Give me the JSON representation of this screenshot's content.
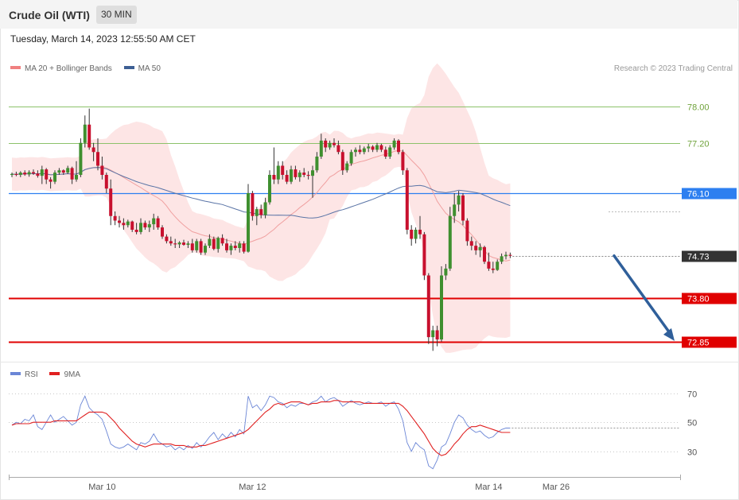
{
  "header": {
    "title": "Crude Oil (WTI)",
    "timeframe": "30 MIN"
  },
  "datetime": "Tuesday, March 14, 2023 12:55:50 AM CET",
  "copyright": "Research © 2023 Trading Central",
  "legend_main": [
    {
      "label": "MA 20 + Bollinger Bands",
      "color": "#f08080"
    },
    {
      "label": "MA 50",
      "color": "#3d5f94"
    }
  ],
  "legend_rsi": [
    {
      "label": "RSI",
      "color": "#6b86d6"
    },
    {
      "label": "9MA",
      "color": "#e02020"
    }
  ],
  "chart_data": [
    {
      "type": "candlestick",
      "title": "Crude Oil (WTI)",
      "ylim": [
        72.5,
        78.5
      ],
      "current_price": "74.73",
      "levels": [
        {
          "value": 78.0,
          "label": "78.00",
          "role": "resistance",
          "color": "#8cc26a"
        },
        {
          "value": 77.2,
          "label": "77.20",
          "role": "resistance",
          "color": "#8cc26a"
        },
        {
          "value": 76.1,
          "label": "76.10",
          "role": "pivot",
          "color": "#2d7ff0"
        },
        {
          "value": 73.8,
          "label": "73.80",
          "role": "support",
          "color": "#e00000"
        },
        {
          "value": 72.85,
          "label": "72.85",
          "role": "support",
          "color": "#e00000"
        }
      ],
      "forecast_arrow": {
        "from": 74.73,
        "to": 72.85,
        "color": "#2f5f9a"
      },
      "candles": [
        [
          76.5,
          76.55,
          76.45,
          76.52
        ],
        [
          76.52,
          76.57,
          76.47,
          76.5
        ],
        [
          76.5,
          76.58,
          76.45,
          76.55
        ],
        [
          76.55,
          76.6,
          76.48,
          76.51
        ],
        [
          76.51,
          76.6,
          76.46,
          76.56
        ],
        [
          76.56,
          76.62,
          76.5,
          76.53
        ],
        [
          76.53,
          76.6,
          76.44,
          76.48
        ],
        [
          76.48,
          76.7,
          76.3,
          76.62
        ],
        [
          76.62,
          76.65,
          76.3,
          76.4
        ],
        [
          76.4,
          76.45,
          76.2,
          76.35
        ],
        [
          76.35,
          76.6,
          76.3,
          76.55
        ],
        [
          76.55,
          76.65,
          76.5,
          76.6
        ],
        [
          76.6,
          76.62,
          76.5,
          76.55
        ],
        [
          76.55,
          76.7,
          76.52,
          76.65
        ],
        [
          76.65,
          76.68,
          76.3,
          76.4
        ],
        [
          76.4,
          76.8,
          76.35,
          76.5
        ],
        [
          76.5,
          77.3,
          76.45,
          77.2
        ],
        [
          77.2,
          77.8,
          77.1,
          77.6
        ],
        [
          77.6,
          77.95,
          77.05,
          77.1
        ],
        [
          77.1,
          77.2,
          76.8,
          77.0
        ],
        [
          77.0,
          77.3,
          76.6,
          76.7
        ],
        [
          76.7,
          76.9,
          76.4,
          76.5
        ],
        [
          76.5,
          76.55,
          76.1,
          76.2
        ],
        [
          76.2,
          76.4,
          75.4,
          75.6
        ],
        [
          75.6,
          75.7,
          75.4,
          75.5
        ],
        [
          75.5,
          75.6,
          75.35,
          75.45
        ],
        [
          75.45,
          75.55,
          75.3,
          75.4
        ],
        [
          75.4,
          75.52,
          75.35,
          75.48
        ],
        [
          75.48,
          75.5,
          75.25,
          75.3
        ],
        [
          75.3,
          75.45,
          75.2,
          75.25
        ],
        [
          75.25,
          75.55,
          75.2,
          75.45
        ],
        [
          75.45,
          75.5,
          75.3,
          75.35
        ],
        [
          75.35,
          75.5,
          75.25,
          75.42
        ],
        [
          75.42,
          75.65,
          75.3,
          75.55
        ],
        [
          75.55,
          75.6,
          75.3,
          75.35
        ],
        [
          75.35,
          75.4,
          75.1,
          75.15
        ],
        [
          75.15,
          75.2,
          75.0,
          75.05
        ],
        [
          75.05,
          75.15,
          74.95,
          75.0
        ],
        [
          75.0,
          75.1,
          74.9,
          74.98
        ],
        [
          74.98,
          75.05,
          74.9,
          75.02
        ],
        [
          75.02,
          75.08,
          74.95,
          74.97
        ],
        [
          74.97,
          75.05,
          74.9,
          75.0
        ],
        [
          75.0,
          75.1,
          74.8,
          74.85
        ],
        [
          74.85,
          75.1,
          74.8,
          75.05
        ],
        [
          75.05,
          75.1,
          74.75,
          74.8
        ],
        [
          74.8,
          75.0,
          74.75,
          74.95
        ],
        [
          74.95,
          75.2,
          74.9,
          75.1
        ],
        [
          75.1,
          75.15,
          74.85,
          74.88
        ],
        [
          74.88,
          75.15,
          74.8,
          75.12
        ],
        [
          75.12,
          75.2,
          74.95,
          75.0
        ],
        [
          75.0,
          75.1,
          74.8,
          74.85
        ],
        [
          74.85,
          75.0,
          74.75,
          74.95
        ],
        [
          74.95,
          75.05,
          74.85,
          74.9
        ],
        [
          74.9,
          75.05,
          74.8,
          75.0
        ],
        [
          75.0,
          75.05,
          74.78,
          74.82
        ],
        [
          74.82,
          76.3,
          74.8,
          76.1
        ],
        [
          76.1,
          76.15,
          75.5,
          75.6
        ],
        [
          75.6,
          75.8,
          75.4,
          75.75
        ],
        [
          75.75,
          75.85,
          75.55,
          75.62
        ],
        [
          75.62,
          76.0,
          75.55,
          75.9
        ],
        [
          75.9,
          76.6,
          75.85,
          76.5
        ],
        [
          76.5,
          77.1,
          76.3,
          76.4
        ],
        [
          76.4,
          76.8,
          76.3,
          76.7
        ],
        [
          76.7,
          76.8,
          76.4,
          76.5
        ],
        [
          76.5,
          76.6,
          76.3,
          76.35
        ],
        [
          76.35,
          76.7,
          76.3,
          76.62
        ],
        [
          76.62,
          76.7,
          76.4,
          76.45
        ],
        [
          76.45,
          76.6,
          76.35,
          76.55
        ],
        [
          76.55,
          76.65,
          76.45,
          76.5
        ],
        [
          76.5,
          76.58,
          76.4,
          76.48
        ],
        [
          76.48,
          76.7,
          76.0,
          76.6
        ],
        [
          76.6,
          77.0,
          76.55,
          76.9
        ],
        [
          76.9,
          77.4,
          76.85,
          77.25
        ],
        [
          77.25,
          77.3,
          77.0,
          77.1
        ],
        [
          77.1,
          77.25,
          77.05,
          77.2
        ],
        [
          77.2,
          77.3,
          77.1,
          77.15
        ],
        [
          77.15,
          77.25,
          76.95,
          77.0
        ],
        [
          77.0,
          77.05,
          76.5,
          76.6
        ],
        [
          76.6,
          76.8,
          76.55,
          76.75
        ],
        [
          76.75,
          77.05,
          76.7,
          77.0
        ],
        [
          77.0,
          77.1,
          76.9,
          77.05
        ],
        [
          77.05,
          77.15,
          76.95,
          77.0
        ],
        [
          77.0,
          77.12,
          76.95,
          77.08
        ],
        [
          77.08,
          77.18,
          77.0,
          77.12
        ],
        [
          77.12,
          77.15,
          77.0,
          77.05
        ],
        [
          77.05,
          77.2,
          77.0,
          77.15
        ],
        [
          77.15,
          77.18,
          77.0,
          77.05
        ],
        [
          77.05,
          77.12,
          76.85,
          76.9
        ],
        [
          76.9,
          77.15,
          76.85,
          77.1
        ],
        [
          77.1,
          77.3,
          77.05,
          77.25
        ],
        [
          77.25,
          77.28,
          76.95,
          77.0
        ],
        [
          77.0,
          77.05,
          76.5,
          76.6
        ],
        [
          76.6,
          76.65,
          75.2,
          75.3
        ],
        [
          75.3,
          75.4,
          74.95,
          75.1
        ],
        [
          75.1,
          75.35,
          75.0,
          75.3
        ],
        [
          75.3,
          75.6,
          75.1,
          75.2
        ],
        [
          75.2,
          75.25,
          74.2,
          74.3
        ],
        [
          74.3,
          74.35,
          72.8,
          72.95
        ],
        [
          72.95,
          73.2,
          72.65,
          73.1
        ],
        [
          73.1,
          73.2,
          72.75,
          72.9
        ],
        [
          72.9,
          74.5,
          72.85,
          74.3
        ],
        [
          74.3,
          74.55,
          74.2,
          74.45
        ],
        [
          74.45,
          75.8,
          74.4,
          75.6
        ],
        [
          75.6,
          76.1,
          75.45,
          75.85
        ],
        [
          75.85,
          76.15,
          75.7,
          76.05
        ],
        [
          76.05,
          76.1,
          75.4,
          75.5
        ],
        [
          75.5,
          75.55,
          74.95,
          75.05
        ],
        [
          75.05,
          75.15,
          74.85,
          74.95
        ],
        [
          74.95,
          75.05,
          74.75,
          74.85
        ],
        [
          74.85,
          75.0,
          74.7,
          74.92
        ],
        [
          74.92,
          74.95,
          74.55,
          74.6
        ],
        [
          74.6,
          74.8,
          74.4,
          74.45
        ],
        [
          74.45,
          74.6,
          74.35,
          74.42
        ],
        [
          74.42,
          74.65,
          74.4,
          74.6
        ],
        [
          74.6,
          74.78,
          74.55,
          74.72
        ],
        [
          74.72,
          74.82,
          74.65,
          74.75
        ],
        [
          74.75,
          74.8,
          74.68,
          74.73
        ]
      ]
    },
    {
      "type": "line",
      "title": "RSI",
      "yticks": [
        30,
        50,
        70
      ],
      "ylim": [
        14,
        78
      ],
      "series": [
        {
          "name": "RSI",
          "color": "#6b86d6",
          "values": [
            48,
            50,
            49,
            52,
            51,
            55,
            47,
            45,
            50,
            55,
            50,
            52,
            54,
            51,
            48,
            50,
            62,
            68,
            60,
            57,
            55,
            52,
            44,
            35,
            33,
            32,
            33,
            35,
            33,
            31,
            36,
            35,
            37,
            42,
            37,
            35,
            33,
            34,
            31,
            33,
            31,
            34,
            32,
            36,
            33,
            36,
            40,
            43,
            38,
            42,
            39,
            43,
            40,
            45,
            42,
            68,
            60,
            62,
            58,
            62,
            68,
            67,
            64,
            63,
            60,
            62,
            61,
            63,
            63,
            62,
            64,
            65,
            68,
            64,
            66,
            67,
            65,
            61,
            63,
            65,
            63,
            62,
            63,
            64,
            63,
            63,
            64,
            61,
            63,
            64,
            59,
            51,
            36,
            30,
            36,
            33,
            31,
            20,
            18,
            24,
            33,
            35,
            42,
            50,
            55,
            53,
            48,
            45,
            43,
            44,
            41,
            39,
            40,
            43,
            45,
            46,
            46
          ]
        },
        {
          "name": "9MA",
          "color": "#e02020",
          "values": [
            48,
            49,
            49,
            49,
            49,
            50,
            50,
            50,
            50,
            50,
            51,
            51,
            51,
            51,
            51,
            51,
            53,
            55,
            57,
            57,
            57,
            57,
            56,
            53,
            50,
            46,
            43,
            40,
            37,
            35,
            34,
            33,
            34,
            35,
            35,
            35,
            35,
            35,
            34,
            34,
            34,
            33,
            33,
            33,
            34,
            34,
            35,
            36,
            37,
            38,
            39,
            40,
            41,
            42,
            43,
            45,
            48,
            51,
            54,
            57,
            59,
            62,
            63,
            62,
            63,
            64,
            64,
            64,
            63,
            62,
            63,
            63,
            64,
            64,
            64,
            65,
            65,
            64,
            64,
            64,
            64,
            64,
            63,
            63,
            63,
            63,
            63,
            63,
            63,
            63,
            63,
            61,
            58,
            54,
            50,
            46,
            42,
            37,
            32,
            29,
            27,
            28,
            31,
            35,
            38,
            42,
            45,
            47,
            47,
            48,
            47,
            46,
            45,
            44,
            43,
            43,
            43
          ]
        }
      ]
    }
  ],
  "x_axis": {
    "ticks": [
      {
        "label": "Mar 10",
        "index": 21
      },
      {
        "label": "Mar 12",
        "index": 56
      },
      {
        "label": "Mar 14",
        "index": 111
      },
      {
        "label": "Mar 26",
        "index": 120
      }
    ]
  }
}
